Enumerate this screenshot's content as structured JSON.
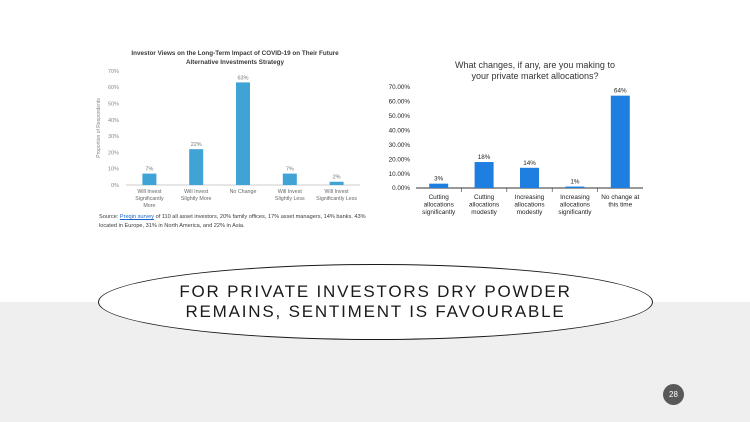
{
  "slide": {
    "banner_line1": "FOR PRIVATE INVESTORS DRY POWDER",
    "banner_line2": "REMAINS, SENTIMENT IS FAVOURABLE",
    "page_number": "28",
    "source_prefix": "Source: ",
    "source_link": "Preqin survey",
    "source_rest": " of 110 all asset investors, 20% family offices, 17% asset managers, 14% banks. 43% located in Europe, 31% in North America, and 22% in Asia."
  },
  "chart_data": [
    {
      "type": "bar",
      "title_line1": "Investor Views on the Long-Term Impact of COVID-19 on Their Future",
      "title_line2": "Alternative Investments Strategy",
      "ylabel": "Proportion of Respondents",
      "xlabel": "",
      "categories": [
        [
          "Will Invest",
          "Significantly",
          "More"
        ],
        [
          "Will Invest",
          "Slightly More"
        ],
        [
          "No Change"
        ],
        [
          "Will Invest",
          "Slightly Less"
        ],
        [
          "Will Invest",
          "Significantly Less"
        ]
      ],
      "values": [
        7,
        22,
        63,
        7,
        2
      ],
      "data_labels": [
        "7%",
        "22%",
        "63%",
        "7%",
        "2%"
      ],
      "yticks": [
        0,
        10,
        20,
        30,
        40,
        50,
        60,
        70
      ],
      "ytick_labels": [
        "0%",
        "10%",
        "20%",
        "30%",
        "40%",
        "50%",
        "60%",
        "70%"
      ],
      "ylim": [
        0,
        70
      ],
      "grid": false,
      "bar_color": "#3fa3d6"
    },
    {
      "type": "bar",
      "title_line1": "What changes, if any, are you making to",
      "title_line2": "your private market allocations?",
      "xlabel": "",
      "ylabel": "",
      "categories": [
        [
          "Cutting",
          "allocations",
          "significantly"
        ],
        [
          "Cutting",
          "allocations",
          "modestly"
        ],
        [
          "Increasing",
          "allocations",
          "modestly"
        ],
        [
          "Increasing",
          "allocations",
          "significantly"
        ],
        [
          "No change at",
          "this time"
        ]
      ],
      "values": [
        3,
        18,
        14,
        1,
        64
      ],
      "data_labels": [
        "3%",
        "18%",
        "14%",
        "1%",
        "64%"
      ],
      "yticks": [
        0,
        10,
        20,
        30,
        40,
        50,
        60,
        70
      ],
      "ytick_labels": [
        "0.00%",
        "10.00%",
        "20.00%",
        "30.00%",
        "40.00%",
        "50.00%",
        "60.00%",
        "70.00%"
      ],
      "ylim": [
        0,
        70
      ],
      "grid": false,
      "bar_color": "#1f7fe0"
    }
  ]
}
